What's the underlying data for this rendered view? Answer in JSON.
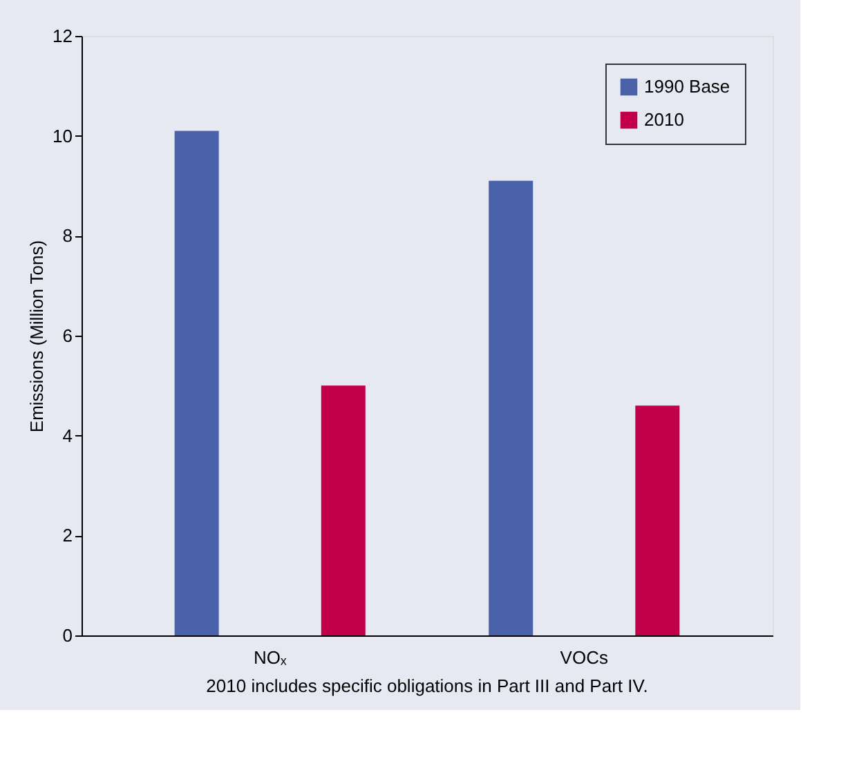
{
  "chart_data": {
    "type": "bar",
    "ylabel": "Emissions (Million Tons)",
    "categories": [
      "NOₓ",
      "VOCs"
    ],
    "series": [
      {
        "name": "1990 Base",
        "color": "#4a62aa",
        "values": [
          10.1,
          9.1
        ]
      },
      {
        "name": "2010",
        "color": "#c2004a",
        "values": [
          5.0,
          4.6
        ]
      }
    ],
    "ylim": [
      0,
      12
    ],
    "yticks": [
      0,
      2,
      4,
      6,
      8,
      10,
      12
    ],
    "grid": false,
    "legend": "top right",
    "annotations": [
      "2010 includes specific obligations in Part III and Part IV."
    ]
  }
}
